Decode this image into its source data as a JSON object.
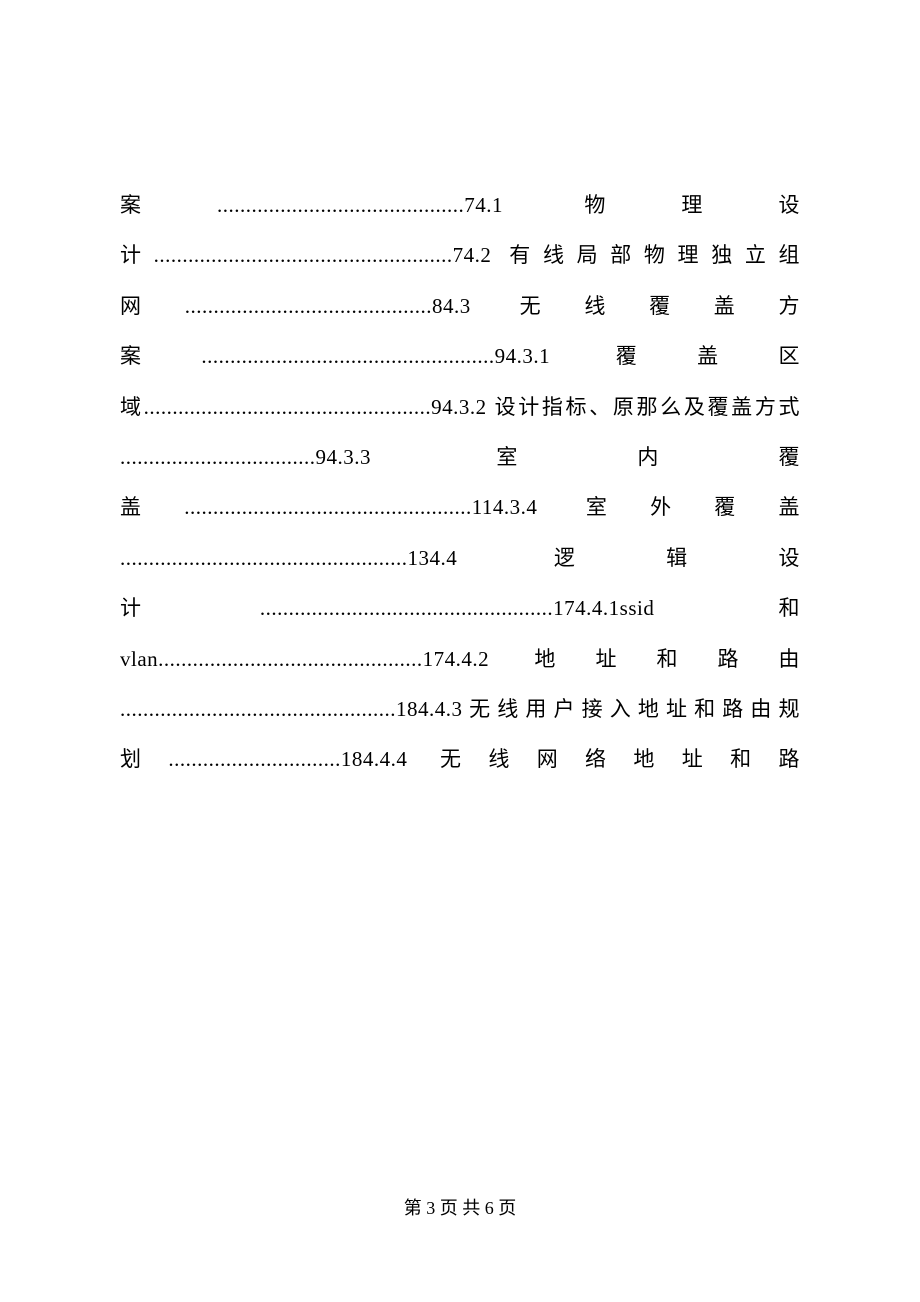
{
  "document": {
    "text_color": "#000000",
    "background_color": "#ffffff",
    "font_family": "SimSun",
    "font_size": 21,
    "line_height": 2.4,
    "body_text": "案...........................................74.1 物理设计....................................................74.2 有线局部物理独立组网...........................................84.3 无线覆盖方案...................................................94.3.1 覆盖区域..................................................94.3.2 设计指标、原那么及覆盖方式 ..................................94.3.3 室内覆盖..................................................114.3.4 室外覆盖 ..................................................134.4 逻辑设计...................................................174.4.1ssid 和vlan..............................................174.4.2 地址和路由 ................................................184.4.3无线用户接入地址和路由规划..............................184.4.4 无线网络地址和路"
  },
  "footer": {
    "page_label": "第 3 页 共 6 页",
    "current_page": 3,
    "total_pages": 6,
    "font_size": 18
  }
}
